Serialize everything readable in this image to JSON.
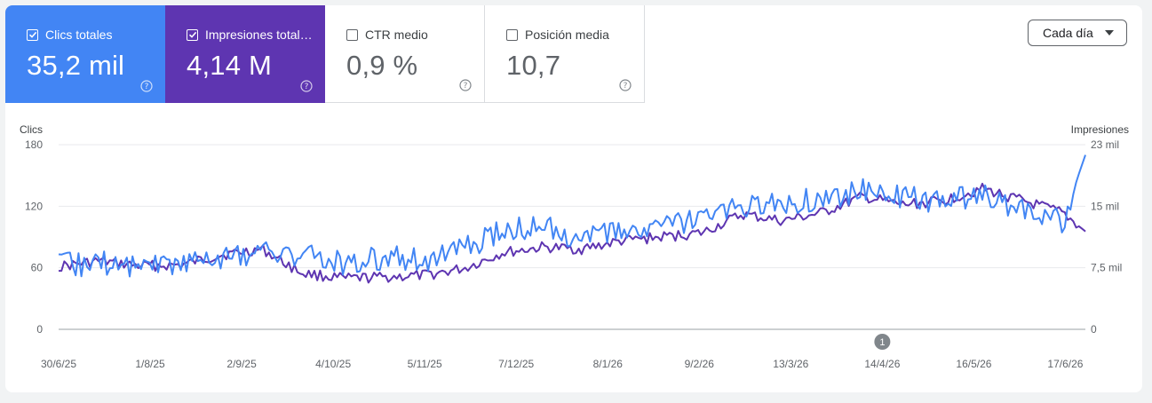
{
  "metrics": [
    {
      "label": "Clics totales",
      "value": "35,2 mil",
      "checked": true
    },
    {
      "label": "Impresiones total…",
      "value": "4,14 M",
      "checked": true
    },
    {
      "label": "CTR medio",
      "value": "0,9 %",
      "checked": false
    },
    {
      "label": "Posición media",
      "value": "10,7",
      "checked": false
    }
  ],
  "granularity": {
    "selected": "Cada día"
  },
  "annotation_marker": "1",
  "colors": {
    "clicks": "#4285f4",
    "impressions": "#5e35b1",
    "grid": "#e8eaed",
    "axis_text": "#5f6368"
  },
  "chart_data": {
    "type": "line",
    "title": "",
    "left_axis": {
      "label": "Clics",
      "ticks": [
        "0",
        "60",
        "120",
        "180"
      ],
      "range": [
        0,
        180
      ]
    },
    "right_axis": {
      "label": "Impresiones",
      "ticks": [
        "0",
        "7,5 mil",
        "15 mil",
        "23 mil"
      ],
      "range": [
        0,
        23000
      ]
    },
    "x_ticks": [
      "30/6/25",
      "1/8/25",
      "2/9/25",
      "4/10/25",
      "5/11/25",
      "7/12/25",
      "8/1/26",
      "9/2/26",
      "13/3/26",
      "14/4/26",
      "16/5/26",
      "17/6/26"
    ],
    "x_range": [
      "30/6/25",
      "24/6/26"
    ],
    "annotation": {
      "x": "14/4/26",
      "label": "1"
    },
    "grid": true,
    "series": [
      {
        "name": "Clics totales",
        "axis": "left",
        "x": [
          "30/6/25",
          "14/7/25",
          "28/7/25",
          "12/8/25",
          "25/8/25",
          "9/9/25",
          "23/9/25",
          "8/10/25",
          "22/10/25",
          "5/11/25",
          "19/11/25",
          "2/12/25",
          "16/12/25",
          "30/12/25",
          "13/1/26",
          "27/1/26",
          "10/2/26",
          "24/2/26",
          "10/3/26",
          "24/3/26",
          "7/4/26",
          "21/4/26",
          "5/5/26",
          "19/5/26",
          "2/6/26",
          "16/6/26",
          "24/6/26"
        ],
        "values": [
          62,
          65,
          63,
          66,
          70,
          75,
          72,
          65,
          70,
          68,
          78,
          95,
          100,
          88,
          95,
          98,
          108,
          118,
          122,
          128,
          135,
          128,
          125,
          130,
          118,
          105,
          170
        ]
      },
      {
        "name": "Impresiones totales",
        "axis": "right",
        "x": [
          "30/6/25",
          "14/7/25",
          "28/7/25",
          "12/8/25",
          "25/8/25",
          "9/9/25",
          "23/9/25",
          "8/10/25",
          "22/10/25",
          "5/11/25",
          "19/11/25",
          "2/12/25",
          "16/12/25",
          "30/12/25",
          "13/1/26",
          "27/1/26",
          "10/2/26",
          "24/2/26",
          "10/3/26",
          "24/3/26",
          "7/4/26",
          "21/4/26",
          "5/5/26",
          "19/5/26",
          "2/6/26",
          "16/6/26",
          "24/6/26"
        ],
        "values": [
          7800,
          8500,
          7900,
          8000,
          9200,
          10000,
          7000,
          6300,
          6500,
          6700,
          7600,
          9500,
          10200,
          10000,
          11000,
          11500,
          12000,
          14300,
          13500,
          14500,
          16500,
          15500,
          16000,
          17500,
          16000,
          14500,
          12200
        ]
      }
    ]
  }
}
